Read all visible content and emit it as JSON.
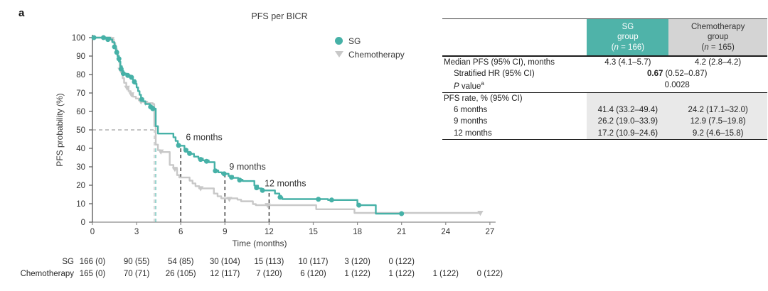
{
  "panel_label": "a",
  "chart_data": {
    "type": "line",
    "subtype": "kaplan-meier-step",
    "title": "PFS per BICR",
    "xlabel": "Time (months)",
    "ylabel": "PFS probability (%)",
    "xlim": [
      0,
      27
    ],
    "ylim": [
      0,
      100
    ],
    "x_ticks": [
      0,
      3,
      6,
      9,
      12,
      15,
      18,
      21,
      24,
      27
    ],
    "y_ticks": [
      0,
      10,
      20,
      30,
      40,
      50,
      60,
      70,
      80,
      90,
      100
    ],
    "grid": false,
    "legend_position": "top-right",
    "series": [
      {
        "name": "Chemotherapy",
        "color": "#c8c8c8",
        "marker": "triangle-down",
        "end_t": 26.35,
        "steps": [
          [
            0,
            100
          ],
          [
            1.3,
            99
          ],
          [
            1.45,
            97
          ],
          [
            1.55,
            94
          ],
          [
            1.65,
            91
          ],
          [
            1.75,
            88
          ],
          [
            1.85,
            84
          ],
          [
            1.95,
            81
          ],
          [
            2.05,
            78
          ],
          [
            2.15,
            75.5
          ],
          [
            2.3,
            73
          ],
          [
            2.45,
            71
          ],
          [
            2.6,
            69.5
          ],
          [
            2.75,
            68
          ],
          [
            2.95,
            67
          ],
          [
            3.15,
            66
          ],
          [
            3.35,
            65.2
          ],
          [
            3.6,
            64.5
          ],
          [
            4.1,
            64
          ],
          [
            4.2,
            52
          ],
          [
            4.3,
            42
          ],
          [
            4.45,
            39
          ],
          [
            4.6,
            38
          ],
          [
            5.25,
            31
          ],
          [
            5.5,
            29
          ],
          [
            5.75,
            25.5
          ],
          [
            5.9,
            24.2
          ],
          [
            6.6,
            22.5
          ],
          [
            6.8,
            21
          ],
          [
            7.0,
            19.5
          ],
          [
            7.25,
            18.3
          ],
          [
            8.25,
            15.5
          ],
          [
            8.5,
            14
          ],
          [
            8.75,
            12.9
          ],
          [
            9.85,
            12.2
          ],
          [
            10.1,
            11.3
          ],
          [
            10.9,
            9.8
          ],
          [
            11.1,
            9.2
          ],
          [
            15.2,
            7
          ],
          [
            17.8,
            5
          ]
        ],
        "censor_marks": [
          [
            1.3,
            99.2
          ],
          [
            1.9,
            82.5
          ],
          [
            2.35,
            72.8
          ],
          [
            2.65,
            69.2
          ],
          [
            3.3,
            65.3
          ],
          [
            3.6,
            64.6
          ],
          [
            4.65,
            38.2
          ],
          [
            5.6,
            28.8
          ],
          [
            7.35,
            18.3
          ],
          [
            9.3,
            12.5
          ],
          [
            11.9,
            9.2
          ],
          [
            26.35,
            5
          ]
        ]
      },
      {
        "name": "SG",
        "color": "#46b1a7",
        "marker": "circle",
        "end_t": 21,
        "steps": [
          [
            0,
            100
          ],
          [
            1.2,
            99
          ],
          [
            1.35,
            97.5
          ],
          [
            1.5,
            95
          ],
          [
            1.6,
            93
          ],
          [
            1.7,
            90
          ],
          [
            1.8,
            87
          ],
          [
            1.9,
            84.5
          ],
          [
            2.0,
            82
          ],
          [
            2.1,
            80.5
          ],
          [
            2.3,
            79.5
          ],
          [
            2.6,
            78.5
          ],
          [
            2.75,
            77
          ],
          [
            2.9,
            75
          ],
          [
            3.0,
            73
          ],
          [
            3.1,
            71
          ],
          [
            3.2,
            69
          ],
          [
            3.3,
            67
          ],
          [
            3.45,
            65.5
          ],
          [
            3.6,
            64
          ],
          [
            3.9,
            62.5
          ],
          [
            4.15,
            61.5
          ],
          [
            4.3,
            52
          ],
          [
            4.45,
            48
          ],
          [
            5.5,
            46
          ],
          [
            5.65,
            44
          ],
          [
            5.8,
            42
          ],
          [
            5.95,
            41.4
          ],
          [
            6.25,
            39.5
          ],
          [
            6.45,
            38
          ],
          [
            6.65,
            37
          ],
          [
            6.9,
            35.5
          ],
          [
            7.2,
            34.5
          ],
          [
            7.5,
            33.5
          ],
          [
            7.9,
            32.5
          ],
          [
            8.3,
            28
          ],
          [
            8.55,
            27
          ],
          [
            8.8,
            26.2
          ],
          [
            9.25,
            25
          ],
          [
            9.55,
            24
          ],
          [
            9.9,
            23
          ],
          [
            10.2,
            22.3
          ],
          [
            11.0,
            19.8
          ],
          [
            11.25,
            18.3
          ],
          [
            11.5,
            17.2
          ],
          [
            12.4,
            15.5
          ],
          [
            12.7,
            13.5
          ],
          [
            12.9,
            12.5
          ],
          [
            16.0,
            12
          ],
          [
            18.0,
            9.2
          ],
          [
            19.25,
            4.6
          ]
        ],
        "censor_marks": [
          [
            0.1,
            100
          ],
          [
            0.75,
            100
          ],
          [
            1.05,
            99
          ],
          [
            1.5,
            95
          ],
          [
            1.65,
            92
          ],
          [
            1.8,
            88.5
          ],
          [
            1.95,
            83
          ],
          [
            2.1,
            80.5
          ],
          [
            2.4,
            79.5
          ],
          [
            2.65,
            78.5
          ],
          [
            2.85,
            76
          ],
          [
            3.35,
            66.5
          ],
          [
            3.95,
            62.5
          ],
          [
            4.1,
            61.5
          ],
          [
            5.85,
            41.6
          ],
          [
            6.35,
            39
          ],
          [
            6.6,
            37.2
          ],
          [
            7.35,
            34
          ],
          [
            7.75,
            33
          ],
          [
            8.35,
            27.8
          ],
          [
            8.95,
            26.2
          ],
          [
            9.45,
            24.3
          ],
          [
            10.0,
            22.8
          ],
          [
            11.15,
            18.6
          ],
          [
            11.55,
            17.2
          ],
          [
            12.75,
            13.5
          ],
          [
            15.35,
            12.4
          ],
          [
            16.25,
            12
          ],
          [
            18.1,
            9.2
          ],
          [
            21,
            4.6
          ]
        ]
      }
    ],
    "reference_lines": [
      {
        "kind": "h",
        "p": 50,
        "t0": 0,
        "t1": 4.3,
        "color": "#8a8a8a",
        "width": 1.1
      },
      {
        "kind": "v",
        "t": 4.2,
        "p0": 0,
        "p1": 50,
        "color": "#bcbcbc",
        "width": 1.1
      },
      {
        "kind": "v",
        "t": 4.3,
        "p0": 0,
        "p1": 50,
        "color": "#46b1a7",
        "width": 1.1
      },
      {
        "kind": "v",
        "t": 6,
        "p0": 0,
        "p1": 41.4,
        "color": "#2f2f2f",
        "width": 1.4
      },
      {
        "kind": "v",
        "t": 9,
        "p0": 0,
        "p1": 26.2,
        "color": "#2f2f2f",
        "width": 1.4
      },
      {
        "kind": "v",
        "t": 12,
        "p0": 0,
        "p1": 17.2,
        "color": "#2f2f2f",
        "width": 1.4
      }
    ],
    "annotations": [
      {
        "text": "6 months",
        "t": 6.2,
        "p": 44.5
      },
      {
        "text": "9 months",
        "t": 9.15,
        "p": 28.5
      },
      {
        "text": "12 months",
        "t": 11.55,
        "p": 19.5
      }
    ],
    "at_risk": {
      "rows": [
        {
          "label": "SG",
          "values": [
            "166 (0)",
            "90 (55)",
            "54 (85)",
            "30 (104)",
            "15 (113)",
            "10 (117)",
            "3 (120)",
            "0 (122)"
          ]
        },
        {
          "label": "Chemotherapy",
          "values": [
            "165 (0)",
            "70 (71)",
            "26 (105)",
            "12 (117)",
            "7 (120)",
            "6 (120)",
            "1 (122)",
            "1 (122)",
            "1 (122)",
            "0 (122)"
          ]
        }
      ]
    }
  },
  "legend": {
    "items": [
      {
        "label": "SG",
        "marker": "circle",
        "color": "#46b1a7"
      },
      {
        "label": "Chemotherapy",
        "marker": "triangle-down",
        "color": "#c8c8c8"
      }
    ]
  },
  "stats_table": {
    "header_cols": [
      {
        "line1": "SG",
        "line2": "group",
        "n_label": "(n = 166)",
        "style": "teal"
      },
      {
        "line1": "Chemotherapy",
        "line2": "group",
        "n_label": "(n = 165)",
        "style": "gray"
      }
    ],
    "section1": [
      {
        "label": "Median PFS (95% CI), months",
        "indent": false,
        "cells": [
          "4.3 (4.1–5.7)",
          "4.2 (2.8–4.2)"
        ]
      },
      {
        "label": "Stratified HR (95% CI)",
        "indent": true,
        "span_bold": "0.67",
        "span_rest": " (0.52–0.87)"
      },
      {
        "label": "P value",
        "label_italic_first": true,
        "label_sup": "a",
        "indent": true,
        "span": "0.0028"
      }
    ],
    "section2_header": "PFS rate, % (95% CI)",
    "section2": [
      {
        "label": "6 months",
        "cells": [
          "41.4 (33.2–49.4)",
          "24.2 (17.1–32.0)"
        ]
      },
      {
        "label": "9 months",
        "cells": [
          "26.2 (19.0–33.9)",
          "12.9 (7.5–19.8)"
        ]
      },
      {
        "label": "12 months",
        "cells": [
          "17.2 (10.9–24.6)",
          "9.2 (4.6–15.8)"
        ]
      }
    ]
  }
}
